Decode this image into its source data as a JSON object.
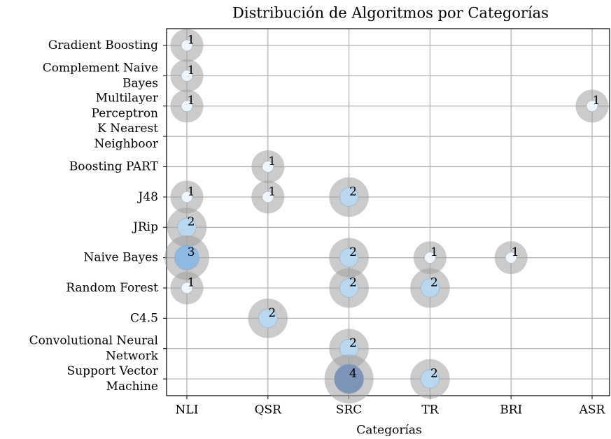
{
  "chart_data": {
    "type": "bubble",
    "title": "Distribución de Algoritmos por Categorías",
    "x_label": "Categorías",
    "x_categories": [
      "NLI",
      "QSR",
      "SRC",
      "TR",
      "BRI",
      "ASR"
    ],
    "y_categories": [
      "Gradient Boosting",
      "Complement Naive\nBayes",
      "Multilayer\nPerceptron",
      "K Nearest\nNeighboor",
      "Boosting PART",
      "J48",
      "JRip",
      "Naive Bayes",
      "Random Forest",
      "C4.5",
      "Convolutional Neural\nNetwork",
      "Support Vector\nMachine"
    ],
    "points": [
      {
        "x": "NLI",
        "y": "Gradient Boosting",
        "value": 1
      },
      {
        "x": "NLI",
        "y": "Complement Naive\nBayes",
        "value": 1
      },
      {
        "x": "NLI",
        "y": "Multilayer\nPerceptron",
        "value": 1
      },
      {
        "x": "ASR",
        "y": "Multilayer\nPerceptron",
        "value": 1
      },
      {
        "x": "QSR",
        "y": "Boosting PART",
        "value": 1
      },
      {
        "x": "NLI",
        "y": "J48",
        "value": 1
      },
      {
        "x": "QSR",
        "y": "J48",
        "value": 1
      },
      {
        "x": "SRC",
        "y": "J48",
        "value": 2
      },
      {
        "x": "NLI",
        "y": "JRip",
        "value": 2
      },
      {
        "x": "NLI",
        "y": "Naive Bayes",
        "value": 3
      },
      {
        "x": "SRC",
        "y": "Naive Bayes",
        "value": 2
      },
      {
        "x": "TR",
        "y": "Naive Bayes",
        "value": 1
      },
      {
        "x": "BRI",
        "y": "Naive Bayes",
        "value": 1
      },
      {
        "x": "NLI",
        "y": "Random Forest",
        "value": 1
      },
      {
        "x": "SRC",
        "y": "Random Forest",
        "value": 2
      },
      {
        "x": "TR",
        "y": "Random Forest",
        "value": 2
      },
      {
        "x": "QSR",
        "y": "C4.5",
        "value": 2
      },
      {
        "x": "SRC",
        "y": "Convolutional Neural\nNetwork",
        "value": 2
      },
      {
        "x": "SRC",
        "y": "Support Vector\nMachine",
        "value": 4
      },
      {
        "x": "TR",
        "y": "Support Vector\nMachine",
        "value": 2
      }
    ],
    "grid": true
  }
}
